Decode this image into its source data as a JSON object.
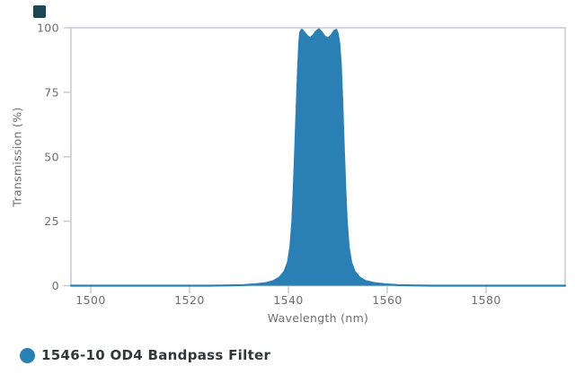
{
  "page": {
    "background": "#ffffff"
  },
  "brand": {
    "mark_color": "#1c4654"
  },
  "chart_data": {
    "type": "area",
    "title": "",
    "xlabel": "Wavelength (nm)",
    "ylabel": "Transmission (%)",
    "xlim": [
      1496,
      1596
    ],
    "ylim": [
      0,
      100
    ],
    "xticks": [
      1500,
      1520,
      1540,
      1560,
      1580
    ],
    "yticks": [
      0,
      25,
      50,
      75,
      100
    ],
    "grid": "off",
    "plot_border": true,
    "axis_color": "#c7cad3",
    "tick_label_color": "#6e6e73",
    "legend_position": "bottom-left",
    "series": [
      {
        "name": "1546-10 OD4 Bandpass Filter",
        "color": "#2a7fb5",
        "points": [
          [
            1496.0,
            0
          ],
          [
            1524.0,
            0
          ],
          [
            1528.0,
            0.1
          ],
          [
            1531.0,
            0.25
          ],
          [
            1533.5,
            0.55
          ],
          [
            1535.5,
            1.0
          ],
          [
            1537.0,
            1.8
          ],
          [
            1538.2,
            3.2
          ],
          [
            1539.2,
            5.5
          ],
          [
            1539.9,
            9
          ],
          [
            1540.4,
            15
          ],
          [
            1540.8,
            25
          ],
          [
            1541.1,
            38
          ],
          [
            1541.4,
            54
          ],
          [
            1541.7,
            71
          ],
          [
            1542.0,
            86
          ],
          [
            1542.2,
            94
          ],
          [
            1542.4,
            98.3
          ],
          [
            1542.7,
            99.3
          ],
          [
            1543.2,
            98.2
          ],
          [
            1543.8,
            96.8
          ],
          [
            1544.4,
            96.0
          ],
          [
            1545.0,
            97.0
          ],
          [
            1545.6,
            98.6
          ],
          [
            1546.2,
            99.4
          ],
          [
            1546.7,
            98.3
          ],
          [
            1547.4,
            96.5
          ],
          [
            1548.1,
            96.0
          ],
          [
            1548.7,
            97.2
          ],
          [
            1549.3,
            98.8
          ],
          [
            1549.7,
            99.2
          ],
          [
            1550.0,
            97.6
          ],
          [
            1550.3,
            94
          ],
          [
            1550.6,
            86
          ],
          [
            1550.9,
            71
          ],
          [
            1551.2,
            54
          ],
          [
            1551.5,
            38
          ],
          [
            1551.8,
            25
          ],
          [
            1552.2,
            15
          ],
          [
            1552.7,
            9
          ],
          [
            1553.4,
            5.5
          ],
          [
            1554.4,
            3.2
          ],
          [
            1555.6,
            1.8
          ],
          [
            1557.4,
            1.0
          ],
          [
            1559.4,
            0.55
          ],
          [
            1562.0,
            0.25
          ],
          [
            1565.0,
            0.1
          ],
          [
            1569.0,
            0
          ],
          [
            1596.0,
            0
          ]
        ]
      }
    ]
  },
  "legend": {
    "marker": "circle"
  }
}
